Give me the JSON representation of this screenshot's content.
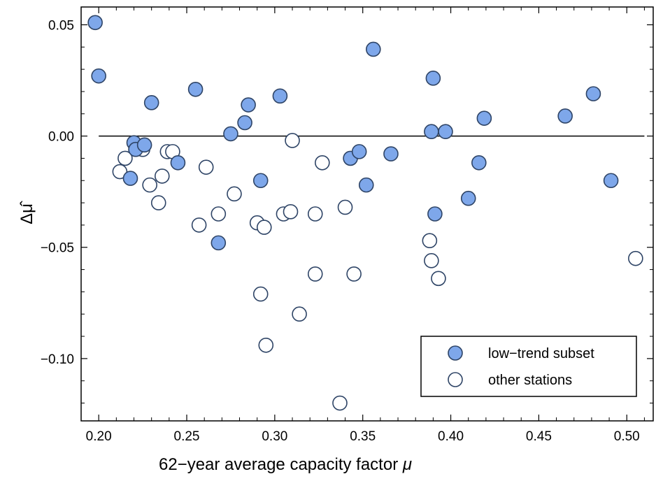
{
  "chart_data": {
    "type": "scatter",
    "xlabel": "62−year average capacity factor ",
    "xlabel_var": "μ",
    "ylabel": "Δμ̂",
    "xlim": [
      0.19,
      0.515
    ],
    "ylim": [
      -0.128,
      0.058
    ],
    "x_ticks": [
      0.2,
      0.25,
      0.3,
      0.35,
      0.4,
      0.45,
      0.5
    ],
    "x_tick_labels": [
      "0.20",
      "0.25",
      "0.30",
      "0.35",
      "0.40",
      "0.45",
      "0.50"
    ],
    "y_ticks": [
      0.05,
      0.0,
      -0.05,
      -0.1
    ],
    "y_tick_labels": [
      "0.05",
      "0.00",
      "−0.05",
      "−0.10"
    ],
    "reference_line": {
      "y": 0.0,
      "x_from": 0.2,
      "x_to": 0.51
    },
    "legend_position": "bottom-right",
    "series": [
      {
        "name": "low−trend subset",
        "style": "filled",
        "fill": "#7ea7ea",
        "stroke": "#2e4466",
        "points": [
          [
            0.198,
            0.051
          ],
          [
            0.2,
            0.027
          ],
          [
            0.23,
            0.015
          ],
          [
            0.22,
            -0.003
          ],
          [
            0.221,
            -0.006
          ],
          [
            0.226,
            -0.004
          ],
          [
            0.218,
            -0.019
          ],
          [
            0.245,
            -0.012
          ],
          [
            0.255,
            0.021
          ],
          [
            0.268,
            -0.048
          ],
          [
            0.275,
            0.001
          ],
          [
            0.283,
            0.006
          ],
          [
            0.285,
            0.014
          ],
          [
            0.292,
            -0.02
          ],
          [
            0.303,
            0.018
          ],
          [
            0.343,
            -0.01
          ],
          [
            0.348,
            -0.007
          ],
          [
            0.352,
            -0.022
          ],
          [
            0.356,
            0.039
          ],
          [
            0.366,
            -0.008
          ],
          [
            0.389,
            0.002
          ],
          [
            0.39,
            0.026
          ],
          [
            0.391,
            -0.035
          ],
          [
            0.397,
            0.002
          ],
          [
            0.41,
            -0.028
          ],
          [
            0.416,
            -0.012
          ],
          [
            0.419,
            0.008
          ],
          [
            0.465,
            0.009
          ],
          [
            0.481,
            0.019
          ],
          [
            0.491,
            -0.02
          ]
        ]
      },
      {
        "name": "other stations",
        "style": "hollow",
        "fill": "#ffffff",
        "stroke": "#2e4466",
        "points": [
          [
            0.212,
            -0.016
          ],
          [
            0.215,
            -0.01
          ],
          [
            0.225,
            -0.006
          ],
          [
            0.229,
            -0.022
          ],
          [
            0.234,
            -0.03
          ],
          [
            0.236,
            -0.018
          ],
          [
            0.239,
            -0.007
          ],
          [
            0.242,
            -0.007
          ],
          [
            0.257,
            -0.04
          ],
          [
            0.261,
            -0.014
          ],
          [
            0.268,
            -0.035
          ],
          [
            0.277,
            -0.026
          ],
          [
            0.29,
            -0.039
          ],
          [
            0.292,
            -0.071
          ],
          [
            0.294,
            -0.041
          ],
          [
            0.295,
            -0.094
          ],
          [
            0.305,
            -0.035
          ],
          [
            0.309,
            -0.034
          ],
          [
            0.31,
            -0.002
          ],
          [
            0.314,
            -0.08
          ],
          [
            0.323,
            -0.035
          ],
          [
            0.323,
            -0.062
          ],
          [
            0.327,
            -0.012
          ],
          [
            0.337,
            -0.12
          ],
          [
            0.34,
            -0.032
          ],
          [
            0.345,
            -0.062
          ],
          [
            0.388,
            -0.047
          ],
          [
            0.389,
            -0.056
          ],
          [
            0.393,
            -0.064
          ],
          [
            0.505,
            -0.055
          ]
        ]
      }
    ]
  }
}
